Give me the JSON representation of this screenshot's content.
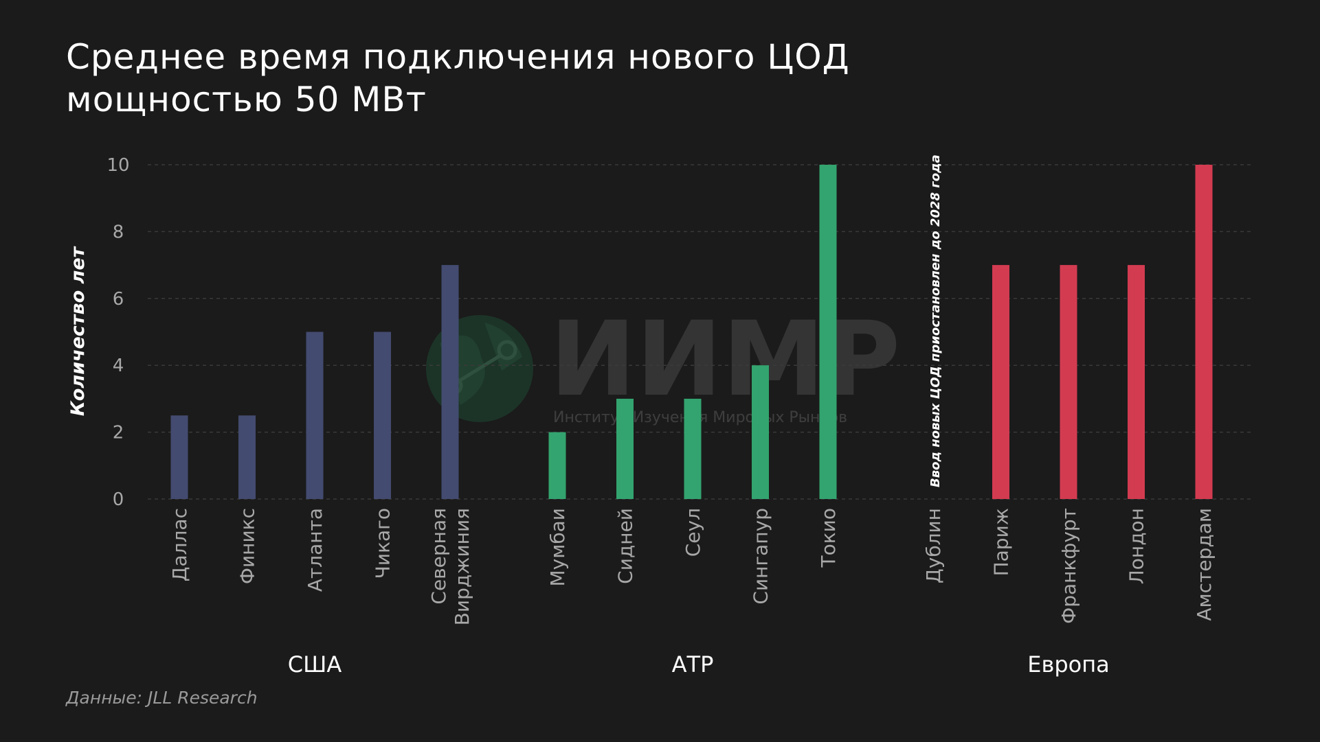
{
  "title_lines": [
    "Среднее время подключения нового ЦОД",
    "мощностью 50 МВт"
  ],
  "source": "Данные: JLL Research",
  "watermark": {
    "logo_text": "ИИМР",
    "subtitle": "Институт Изучения Мировых Рынков"
  },
  "colors": {
    "background": "#1b1b1b",
    "usa": "#434b70",
    "apac": "#33a46f",
    "europe": "#d33b51",
    "axis_text": "#a8a8a8",
    "grid": "#3a3a3a"
  },
  "chart_data": {
    "type": "bar",
    "ylabel": "Количество лет",
    "ylim": [
      0,
      10
    ],
    "yticks": [
      0,
      2,
      4,
      6,
      8,
      10
    ],
    "grid": true,
    "groups": [
      {
        "name": "США",
        "color_key": "usa",
        "categories": [
          {
            "label": [
              "Даллас"
            ],
            "value": 2.5
          },
          {
            "label": [
              "Финикс"
            ],
            "value": 2.5
          },
          {
            "label": [
              "Атланта"
            ],
            "value": 5
          },
          {
            "label": [
              "Чикаго"
            ],
            "value": 5
          },
          {
            "label": [
              "Северная",
              "Вирджиния"
            ],
            "value": 7
          }
        ]
      },
      {
        "name": "АТР",
        "color_key": "apac",
        "categories": [
          {
            "label": [
              "Мумбаи"
            ],
            "value": 2
          },
          {
            "label": [
              "Сидней"
            ],
            "value": 3
          },
          {
            "label": [
              "Сеул"
            ],
            "value": 3
          },
          {
            "label": [
              "Сингапур"
            ],
            "value": 4
          },
          {
            "label": [
              "Токио"
            ],
            "value": 10
          }
        ]
      },
      {
        "name": "Европа",
        "color_key": "europe",
        "categories": [
          {
            "label": [
              "Дублин"
            ],
            "value": null,
            "annotation": "Ввод новых ЦОД приостановлен до 2028 года"
          },
          {
            "label": [
              "Париж"
            ],
            "value": 7
          },
          {
            "label": [
              "Франкфурт"
            ],
            "value": 7
          },
          {
            "label": [
              "Лондон"
            ],
            "value": 7
          },
          {
            "label": [
              "Амстердам"
            ],
            "value": 10
          }
        ]
      }
    ]
  }
}
